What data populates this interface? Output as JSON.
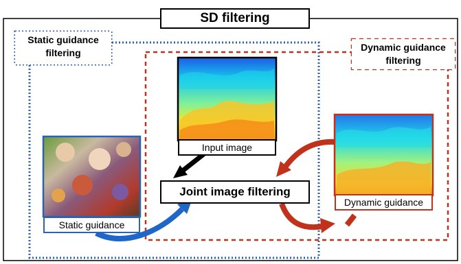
{
  "title": "SD filtering",
  "static_group_label": "Static guidance\nfiltering",
  "dynamic_group_label": "Dynamic guidance\nfiltering",
  "input_caption": "Input image",
  "static_caption": "Static guidance",
  "dynamic_caption": "Dynamic guidance",
  "joint_label": "Joint image filtering",
  "colors": {
    "static_border": "#2b62b2",
    "dynamic_border": "#c0321c",
    "black": "#000000",
    "static_arrow": "#1f66c9",
    "dynamic_arrow": "#c0321c"
  }
}
